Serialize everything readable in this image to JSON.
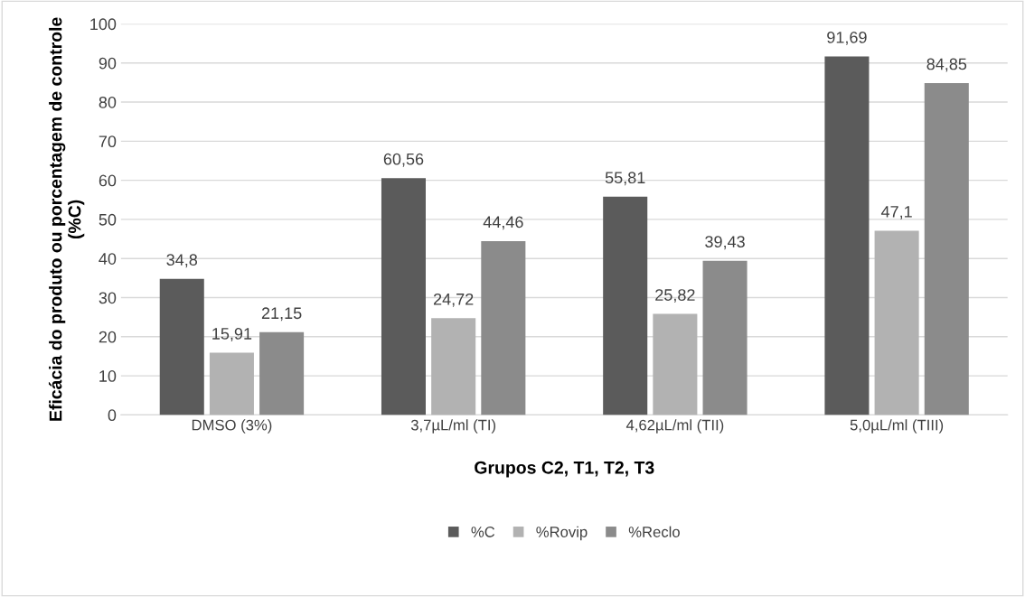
{
  "chart_data": {
    "type": "bar",
    "xlabel": "Grupos C2, T1, T2, T3",
    "ylabel": "Eficácia do produto ou porcentagem de controle (%C)",
    "categories": [
      "DMSO (3%)",
      "3,7µL/ml (TI)",
      "4,62µL/ml (TII)",
      "5,0µL/ml (TIII)"
    ],
    "series": [
      {
        "name": "%C",
        "color": "#5b5b5b",
        "values": [
          34.8,
          60.56,
          55.81,
          91.69
        ],
        "value_labels": [
          "34,8",
          "60,56",
          "55,81",
          "91,69"
        ]
      },
      {
        "name": "%Rovip",
        "color": "#b2b2b2",
        "values": [
          15.91,
          24.72,
          25.82,
          47.1
        ],
        "value_labels": [
          "15,91",
          "24,72",
          "25,82",
          "47,1"
        ]
      },
      {
        "name": "%Reclo",
        "color": "#8b8b8b",
        "values": [
          21.15,
          44.46,
          39.43,
          84.85
        ],
        "value_labels": [
          "21,15",
          "44,46",
          "39,43",
          "84,85"
        ]
      }
    ],
    "ylim": [
      0,
      100
    ],
    "yticks": [
      0,
      10,
      20,
      30,
      40,
      50,
      60,
      70,
      80,
      90,
      100
    ],
    "grid": "y",
    "legend": "bottom"
  }
}
